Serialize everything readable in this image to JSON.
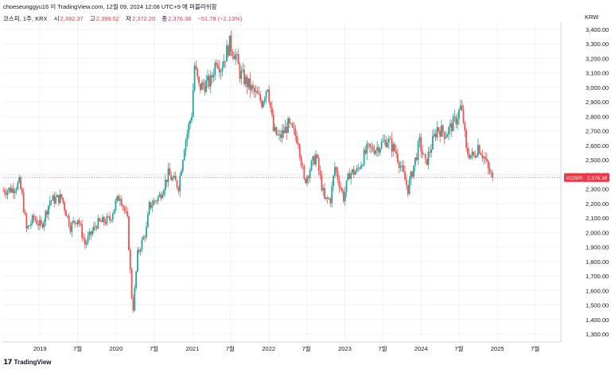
{
  "header": {
    "credit": "choeseunggyu16 이 TradingView.com, 12월 09, 2024 12:08 UTC+9 에 퍼블리쉬함"
  },
  "legend": {
    "symbol": "코스피, 1주, KRX",
    "open_label": "시",
    "open": "2,392.37",
    "high_label": "고",
    "high": "2,399.52",
    "low_label": "저",
    "low": "2,372.20",
    "close_label": "종",
    "close": "2,376.38",
    "change": "−51.78 (−2.13%)"
  },
  "currency": "KRW",
  "price_tag": {
    "symbol": "KOSPI",
    "value": "2,376.38"
  },
  "footer": {
    "brand": "TradingView"
  },
  "colors": {
    "up": "#26a69a",
    "down": "#ef5350",
    "grid": "#f0f3fa",
    "text": "#131722",
    "tag": "#f23645"
  },
  "chart_data": {
    "type": "candlestick",
    "title": "코스피, 1주, KRX",
    "ylabel": "KRW",
    "ylim": [
      1200,
      3450
    ],
    "y_ticks": [
      "1,300.00",
      "1,400.00",
      "1,500.00",
      "1,600.00",
      "1,700.00",
      "1,800.00",
      "1,900.00",
      "2,000.00",
      "2,100.00",
      "2,200.00",
      "2,300.00",
      "2,400.00",
      "2,500.00",
      "2,600.00",
      "2,700.00",
      "2,800.00",
      "2,900.00",
      "3,000.00",
      "3,100.00",
      "3,200.00",
      "3,300.00",
      "3,400.00"
    ],
    "x_ticks": [
      {
        "label": "2019",
        "date": "2019-01-01"
      },
      {
        "label": "7월",
        "date": "2019-07-01"
      },
      {
        "label": "2020",
        "date": "2020-01-01"
      },
      {
        "label": "7월",
        "date": "2020-07-01"
      },
      {
        "label": "2021",
        "date": "2021-01-01"
      },
      {
        "label": "7월",
        "date": "2021-07-01"
      },
      {
        "label": "2022",
        "date": "2022-01-01"
      },
      {
        "label": "7월",
        "date": "2022-07-01"
      },
      {
        "label": "2023",
        "date": "2023-01-01"
      },
      {
        "label": "7월",
        "date": "2023-07-01"
      },
      {
        "label": "2024",
        "date": "2024-01-01"
      },
      {
        "label": "7월",
        "date": "2024-07-01"
      },
      {
        "label": "2025",
        "date": "2025-01-01"
      },
      {
        "label": "7월",
        "date": "2025-07-01"
      }
    ],
    "x_range": [
      "2018-07-09",
      "2025-11-01"
    ],
    "grid": true,
    "last_close": 2376.38,
    "price_path": [
      {
        "date": "2018-07-09",
        "close": 2290
      },
      {
        "date": "2018-08-20",
        "close": 2300
      },
      {
        "date": "2018-09-24",
        "close": 2340
      },
      {
        "date": "2018-10-08",
        "close": 2250
      },
      {
        "date": "2018-10-29",
        "close": 2020
      },
      {
        "date": "2018-12-03",
        "close": 2100
      },
      {
        "date": "2019-01-07",
        "close": 2040
      },
      {
        "date": "2019-02-18",
        "close": 2220
      },
      {
        "date": "2019-04-15",
        "close": 2240
      },
      {
        "date": "2019-05-27",
        "close": 2040
      },
      {
        "date": "2019-07-01",
        "close": 2100
      },
      {
        "date": "2019-08-05",
        "close": 1920
      },
      {
        "date": "2019-09-30",
        "close": 2060
      },
      {
        "date": "2019-12-02",
        "close": 2090
      },
      {
        "date": "2019-12-30",
        "close": 2200
      },
      {
        "date": "2020-01-20",
        "close": 2260
      },
      {
        "date": "2020-02-24",
        "close": 2080
      },
      {
        "date": "2020-03-16",
        "close": 1560
      },
      {
        "date": "2020-03-23",
        "close": 1480
      },
      {
        "date": "2020-04-13",
        "close": 1850
      },
      {
        "date": "2020-05-25",
        "close": 2020
      },
      {
        "date": "2020-06-08",
        "close": 2180
      },
      {
        "date": "2020-07-27",
        "close": 2250
      },
      {
        "date": "2020-09-07",
        "close": 2400
      },
      {
        "date": "2020-10-26",
        "close": 2320
      },
      {
        "date": "2020-11-23",
        "close": 2600
      },
      {
        "date": "2020-12-28",
        "close": 2820
      },
      {
        "date": "2021-01-11",
        "close": 3150
      },
      {
        "date": "2021-02-01",
        "close": 3000
      },
      {
        "date": "2021-03-29",
        "close": 3040
      },
      {
        "date": "2021-04-26",
        "close": 3200
      },
      {
        "date": "2021-05-17",
        "close": 3140
      },
      {
        "date": "2021-06-28",
        "close": 3300
      },
      {
        "date": "2021-07-26",
        "close": 3220
      },
      {
        "date": "2021-08-16",
        "close": 3100
      },
      {
        "date": "2021-10-04",
        "close": 3000
      },
      {
        "date": "2021-11-29",
        "close": 2900
      },
      {
        "date": "2021-12-27",
        "close": 3020
      },
      {
        "date": "2022-01-24",
        "close": 2700
      },
      {
        "date": "2022-02-21",
        "close": 2650
      },
      {
        "date": "2022-04-04",
        "close": 2740
      },
      {
        "date": "2022-05-23",
        "close": 2640
      },
      {
        "date": "2022-06-20",
        "close": 2350
      },
      {
        "date": "2022-08-15",
        "close": 2530
      },
      {
        "date": "2022-09-26",
        "close": 2220
      },
      {
        "date": "2022-10-24",
        "close": 2230
      },
      {
        "date": "2022-11-14",
        "close": 2450
      },
      {
        "date": "2022-12-26",
        "close": 2240
      },
      {
        "date": "2023-01-23",
        "close": 2410
      },
      {
        "date": "2023-02-27",
        "close": 2420
      },
      {
        "date": "2023-04-17",
        "close": 2570
      },
      {
        "date": "2023-05-29",
        "close": 2580
      },
      {
        "date": "2023-07-24",
        "close": 2640
      },
      {
        "date": "2023-09-04",
        "close": 2550
      },
      {
        "date": "2023-10-30",
        "close": 2300
      },
      {
        "date": "2023-12-25",
        "close": 2620
      },
      {
        "date": "2024-01-22",
        "close": 2470
      },
      {
        "date": "2024-03-18",
        "close": 2720
      },
      {
        "date": "2024-04-29",
        "close": 2680
      },
      {
        "date": "2024-06-17",
        "close": 2780
      },
      {
        "date": "2024-07-08",
        "close": 2860
      },
      {
        "date": "2024-07-22",
        "close": 2770
      },
      {
        "date": "2024-08-05",
        "close": 2560
      },
      {
        "date": "2024-09-09",
        "close": 2520
      },
      {
        "date": "2024-09-30",
        "close": 2600
      },
      {
        "date": "2024-11-04",
        "close": 2500
      },
      {
        "date": "2024-11-18",
        "close": 2430
      },
      {
        "date": "2024-12-09",
        "close": 2376
      }
    ]
  }
}
